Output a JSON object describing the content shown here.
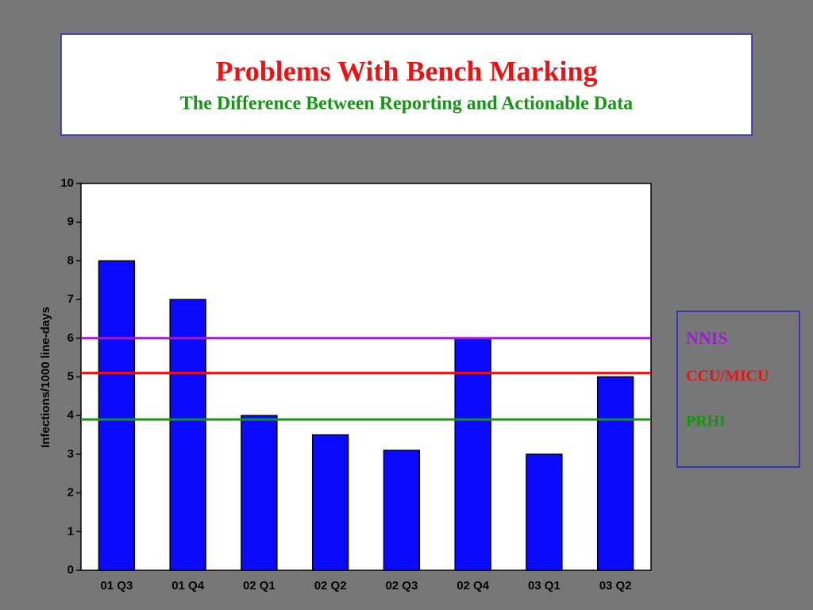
{
  "chart_data": {
    "type": "bar",
    "title": "Problems With Bench Marking",
    "subtitle": "The Difference Between Reporting and Actionable Data",
    "ylabel": "Infections/1000 line-days",
    "categories": [
      "01 Q3",
      "01 Q4",
      "02 Q1",
      "02 Q2",
      "02 Q3",
      "02 Q4",
      "03 Q1",
      "03 Q2"
    ],
    "values": [
      8,
      7,
      4,
      3.5,
      3.1,
      6,
      3,
      5
    ],
    "color": "#0a0aff",
    "ylim": [
      0,
      10
    ],
    "yticks": [
      0,
      1,
      2,
      3,
      4,
      5,
      6,
      7,
      8,
      9,
      10
    ],
    "lines": [
      {
        "name": "NNIS",
        "color": "#9b1fd0",
        "value": 6
      },
      {
        "name": "CCU/MICU",
        "color": "#ee1111",
        "value": 5.1
      },
      {
        "name": "PRHI",
        "color": "#119911",
        "value": 3.9
      }
    ]
  }
}
